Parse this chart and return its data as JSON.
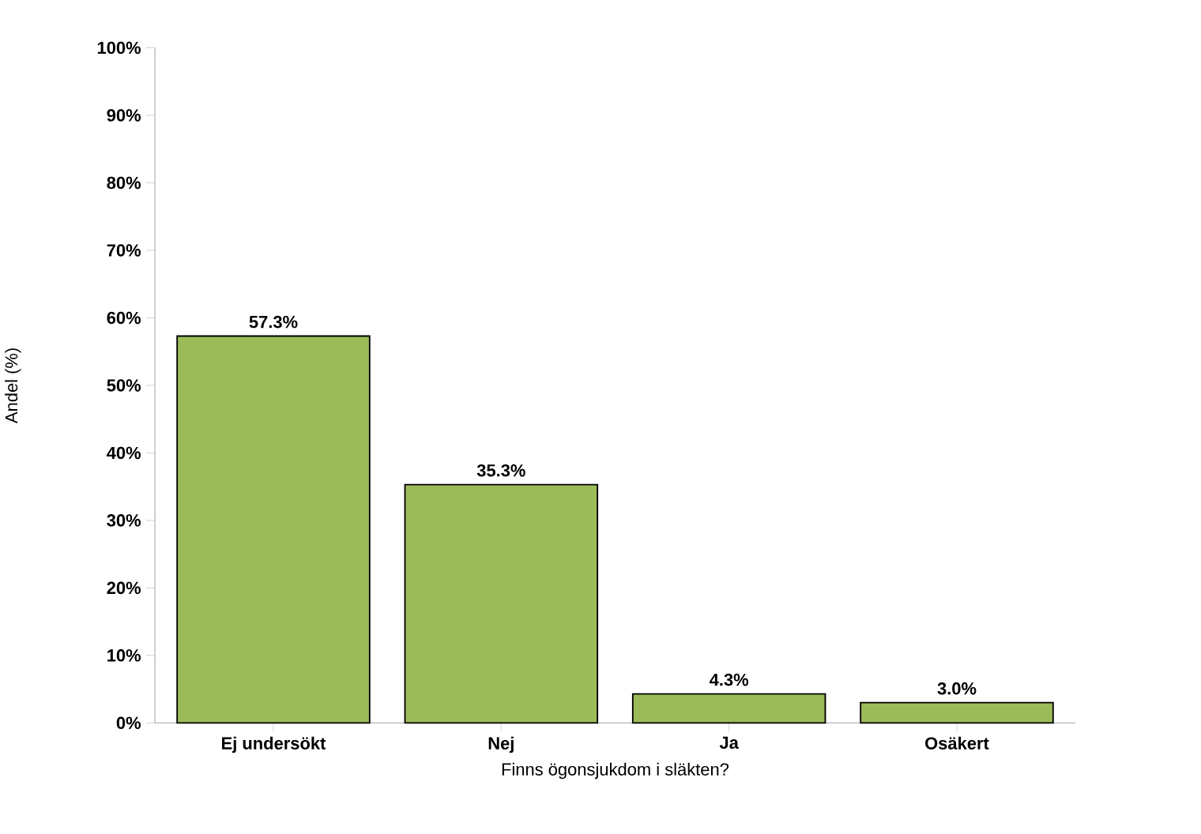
{
  "chart_data": {
    "type": "bar",
    "xlabel": "Finns ögonsjukdom i släkten?",
    "ylabel": "Andel (%)",
    "categories": [
      "Ej undersökt",
      "Nej",
      "Ja",
      "Osäkert"
    ],
    "values": [
      57.3,
      35.3,
      4.3,
      3.0
    ],
    "value_labels": [
      "57.3%",
      "35.3%",
      "4.3%",
      "3.0%"
    ],
    "color": "#9bbb59",
    "ylim": [
      0,
      100
    ],
    "yticks": [
      {
        "value": 0,
        "label": "0%"
      },
      {
        "value": 10,
        "label": "10%"
      },
      {
        "value": 20,
        "label": "20%"
      },
      {
        "value": 30,
        "label": "30%"
      },
      {
        "value": 40,
        "label": "40%"
      },
      {
        "value": 50,
        "label": "50%"
      },
      {
        "value": 60,
        "label": "60%"
      },
      {
        "value": 70,
        "label": "70%"
      },
      {
        "value": 80,
        "label": "80%"
      },
      {
        "value": 90,
        "label": "90%"
      },
      {
        "value": 100,
        "label": "100%"
      }
    ]
  }
}
